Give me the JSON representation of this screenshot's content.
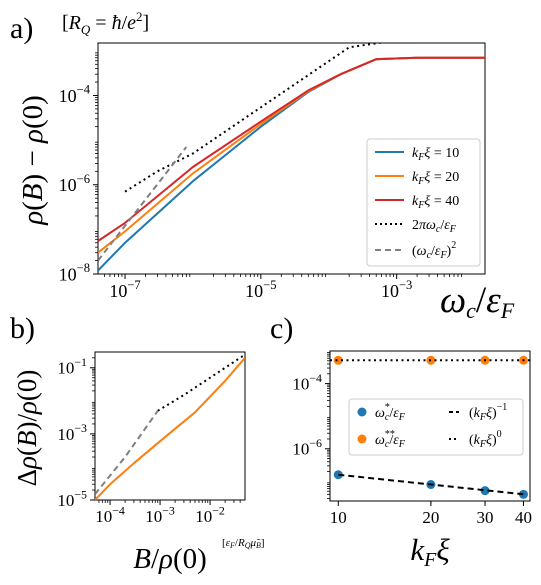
{
  "chart_data": [
    {
      "panel": "a)",
      "type": "line",
      "title": "[R_Q = ħ/e²]",
      "xlabel": "ω_c/ε_F",
      "ylabel": "ρ(B) − ρ(0)",
      "xscale": "log",
      "yscale": "log",
      "xlim": [
        4e-08,
        0.02
      ],
      "ylim": [
        1e-08,
        0.0015
      ],
      "xticks": [
        {
          "v": 1e-07,
          "label": "10^-7"
        },
        {
          "v": 1e-05,
          "label": "10^-5"
        },
        {
          "v": 0.001,
          "label": "10^-3"
        }
      ],
      "yticks": [
        {
          "v": 1e-08,
          "label": "10^-8"
        },
        {
          "v": 1e-06,
          "label": "10^-6"
        },
        {
          "v": 0.0001,
          "label": "10^-4"
        }
      ],
      "legend": {
        "placement": "lower-right",
        "entries": [
          "k_Fξ = 10",
          "k_Fξ = 20",
          "k_Fξ = 40",
          "2πω_c/ε_F",
          "(ω_c/ε_F)²"
        ]
      },
      "series": [
        {
          "name": "k_Fξ = 10",
          "color": "#1f77b4",
          "style": "solid",
          "points": [
            [
              4e-08,
              1.2e-08
            ],
            [
              1e-07,
              5e-08
            ],
            [
              1e-06,
              1.2e-06
            ],
            [
              1e-05,
              2e-05
            ],
            [
              5e-05,
              0.00012
            ],
            [
              0.00015,
              0.0003
            ],
            [
              0.0005,
              0.00065
            ],
            [
              0.002,
              0.0007
            ],
            [
              0.02,
              0.0007
            ]
          ]
        },
        {
          "name": "k_Fξ = 20",
          "color": "#ff7f0e",
          "style": "solid",
          "points": [
            [
              4e-08,
              3e-08
            ],
            [
              1e-07,
              9e-08
            ],
            [
              1e-06,
              1.8e-06
            ],
            [
              1e-05,
              2.3e-05
            ],
            [
              5e-05,
              0.000125
            ],
            [
              0.00015,
              0.0003
            ],
            [
              0.0005,
              0.00065
            ],
            [
              0.002,
              0.0007
            ],
            [
              0.02,
              0.0007
            ]
          ]
        },
        {
          "name": "k_Fξ = 40",
          "color": "#d62728",
          "style": "solid",
          "points": [
            [
              4e-08,
              5.5e-08
            ],
            [
              1e-07,
              1.4e-07
            ],
            [
              1e-06,
              2.5e-06
            ],
            [
              1e-05,
              2.6e-05
            ],
            [
              5e-05,
              0.00013
            ],
            [
              0.00015,
              0.0003
            ],
            [
              0.0005,
              0.00065
            ],
            [
              0.002,
              0.0007
            ],
            [
              0.02,
              0.0007
            ]
          ]
        },
        {
          "name": "2πω_c/ε_F",
          "color": "#000000",
          "style": "dotted",
          "points": [
            [
              1e-07,
              7e-07
            ],
            [
              3e-07,
              2e-06
            ],
            [
              1e-06,
              5e-06
            ],
            [
              0.0002,
              0.0012
            ],
            [
              0.0012,
              0.0018
            ]
          ]
        },
        {
          "name": "(ω_c/ε_F)²",
          "color": "#7f7f7f",
          "style": "dashed",
          "points": [
            [
              4e-08,
              2e-08
            ],
            [
              1e-07,
              1.2e-07
            ],
            [
              4e-07,
              1.8e-06
            ],
            [
              8e-07,
              7e-06
            ]
          ]
        }
      ]
    },
    {
      "panel": "b)",
      "type": "line",
      "xlabel": "B/ρ(0)",
      "xunit": "[ε_F/R_Q μ̃_B]",
      "ylabel": "Δρ(B)/ρ(0)",
      "xscale": "log",
      "yscale": "log",
      "xlim": [
        5e-05,
        0.05
      ],
      "ylim": [
        1e-05,
        0.3
      ],
      "xticks": [
        {
          "v": 0.0001,
          "label": "10^-4"
        },
        {
          "v": 0.001,
          "label": "10^-3"
        },
        {
          "v": 0.01,
          "label": "10^-2"
        }
      ],
      "yticks": [
        {
          "v": 1e-05,
          "label": "10^-5"
        },
        {
          "v": 0.001,
          "label": "10^-3"
        },
        {
          "v": 0.1,
          "label": "10^-1"
        }
      ],
      "series": [
        {
          "color": "#ff7f0e",
          "style": "solid",
          "points": [
            [
              5e-05,
              1e-05
            ],
            [
              0.0001,
              3e-05
            ],
            [
              0.0003,
              0.00013
            ],
            [
              0.001,
              0.0006
            ],
            [
              0.005,
              0.0045
            ],
            [
              0.02,
              0.04
            ],
            [
              0.05,
              0.2
            ]
          ]
        },
        {
          "color": "#000000",
          "style": "dotted",
          "points": [
            [
              0.0009,
              0.005
            ],
            [
              0.003,
              0.015
            ],
            [
              0.01,
              0.05
            ],
            [
              0.05,
              0.25
            ]
          ]
        },
        {
          "color": "#7f7f7f",
          "style": "dashed",
          "points": [
            [
              5e-05,
              1.5e-05
            ],
            [
              0.0002,
              0.0002
            ],
            [
              0.0009,
              0.005
            ]
          ]
        }
      ]
    },
    {
      "panel": "c)",
      "type": "scatter",
      "xlabel": "k_Fξ",
      "xscale": "log",
      "yscale": "log",
      "xlim": [
        9.4,
        42
      ],
      "ylim": [
        2.5e-08,
        0.001
      ],
      "xticks": [
        {
          "v": 10,
          "label": "10"
        },
        {
          "v": 20,
          "label": "20"
        },
        {
          "v": 30,
          "label": "30"
        },
        {
          "v": 40,
          "label": "40"
        }
      ],
      "yticks": [
        {
          "v": 1e-06,
          "label": "10^-6"
        },
        {
          "v": 0.0001,
          "label": "10^-4"
        }
      ],
      "legend": {
        "placement": "center",
        "entries": [
          "ω_c*/ε_F",
          "ω_c**/ε_F",
          "(k_Fξ)^-1",
          "(k_Fξ)^0"
        ]
      },
      "series": [
        {
          "name": "ω_c*/ε_F",
          "color": "#1f77b4",
          "marker": "circle",
          "x": [
            10,
            20,
            30,
            40
          ],
          "y": [
            1.6e-07,
            8e-08,
            5.2e-08,
            4e-08
          ]
        },
        {
          "name": "ω_c**/ε_F",
          "color": "#ff7f0e",
          "marker": "circle",
          "x": [
            10,
            20,
            30,
            40
          ],
          "y": [
            0.00052,
            0.00052,
            0.00052,
            0.00052
          ]
        },
        {
          "name": "(k_Fξ)^-1",
          "color": "#000000",
          "style": "dashed",
          "x": [
            10,
            40
          ],
          "y": [
            1.6e-07,
            4e-08
          ]
        },
        {
          "name": "(k_Fξ)^0",
          "color": "#000000",
          "style": "dotted",
          "x": [
            9.4,
            42
          ],
          "y": [
            0.00052,
            0.00052
          ]
        }
      ]
    }
  ]
}
